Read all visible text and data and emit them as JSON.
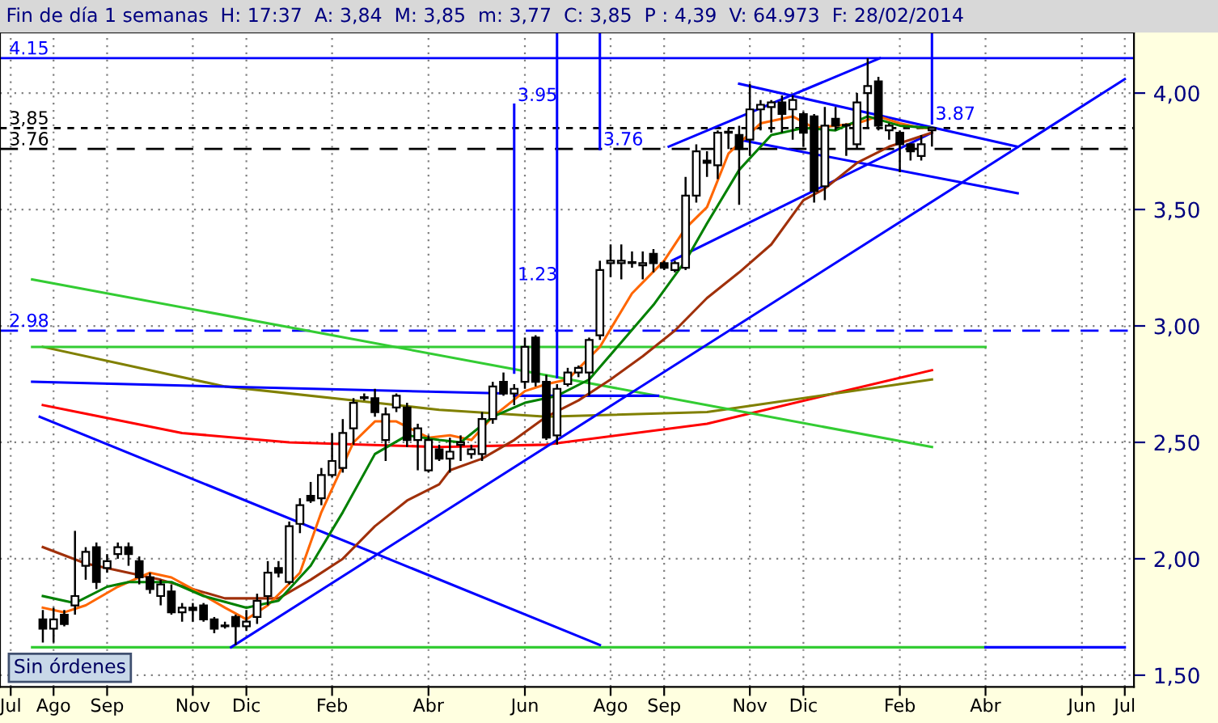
{
  "chart_data": {
    "type": "candlestick",
    "title": "Fin de día 1 semanas  H: 17:37  A: 3,84  M: 3,85  m: 3,77  C: 3,85  P : 4,39  V: 64.973  F: 28/02/2014",
    "x": [
      "2012-07-27",
      "2012-08-03",
      "2012-08-10",
      "2012-08-17",
      "2012-08-24",
      "2012-08-31",
      "2012-09-07",
      "2012-09-14",
      "2012-09-21",
      "2012-09-28",
      "2012-10-05",
      "2012-10-12",
      "2012-10-19",
      "2012-10-26",
      "2012-11-02",
      "2012-11-09",
      "2012-11-16",
      "2012-11-23",
      "2012-11-30",
      "2012-12-07",
      "2012-12-14",
      "2012-12-21",
      "2012-12-28",
      "2013-01-04",
      "2013-01-11",
      "2013-01-18",
      "2013-01-25",
      "2013-02-01",
      "2013-02-08",
      "2013-02-15",
      "2013-02-22",
      "2013-03-01",
      "2013-03-08",
      "2013-03-15",
      "2013-03-22",
      "2013-03-29",
      "2013-04-05",
      "2013-04-12",
      "2013-04-19",
      "2013-04-26",
      "2013-05-03",
      "2013-05-10",
      "2013-05-17",
      "2013-05-24",
      "2013-05-31",
      "2013-06-07",
      "2013-06-14",
      "2013-06-21",
      "2013-06-28",
      "2013-07-05",
      "2013-07-12",
      "2013-07-19",
      "2013-07-26",
      "2013-08-02",
      "2013-08-09",
      "2013-08-16",
      "2013-08-23",
      "2013-08-30",
      "2013-09-06",
      "2013-09-13",
      "2013-09-20",
      "2013-09-27",
      "2013-10-04",
      "2013-10-11",
      "2013-10-18",
      "2013-10-25",
      "2013-11-01",
      "2013-11-08",
      "2013-11-15",
      "2013-11-22",
      "2013-11-29",
      "2013-12-06",
      "2013-12-13",
      "2013-12-20",
      "2013-12-27",
      "2014-01-03",
      "2014-01-10",
      "2014-01-17",
      "2014-01-24",
      "2014-01-31",
      "2014-02-07",
      "2014-02-14",
      "2014-02-21",
      "2014-02-28"
    ],
    "ohlc": [
      [
        1.74,
        1.78,
        1.64,
        1.7
      ],
      [
        1.7,
        1.79,
        1.64,
        1.74
      ],
      [
        1.76,
        1.78,
        1.71,
        1.72
      ],
      [
        1.8,
        2.12,
        1.76,
        1.84
      ],
      [
        1.97,
        2.05,
        1.91,
        2.03
      ],
      [
        2.05,
        2.07,
        1.87,
        1.9
      ],
      [
        1.96,
        2.02,
        1.94,
        1.99
      ],
      [
        2.02,
        2.07,
        2.0,
        2.05
      ],
      [
        2.05,
        2.07,
        1.97,
        2.02
      ],
      [
        1.99,
        2.01,
        1.89,
        1.92
      ],
      [
        1.92,
        1.94,
        1.85,
        1.87
      ],
      [
        1.84,
        1.91,
        1.8,
        1.89
      ],
      [
        1.86,
        1.89,
        1.76,
        1.77
      ],
      [
        1.77,
        1.81,
        1.73,
        1.79
      ],
      [
        1.79,
        1.81,
        1.73,
        1.78
      ],
      [
        1.8,
        1.81,
        1.73,
        1.74
      ],
      [
        1.74,
        1.75,
        1.68,
        1.7
      ],
      [
        1.71,
        1.73,
        1.7,
        1.71
      ],
      [
        1.75,
        1.76,
        1.63,
        1.71
      ],
      [
        1.71,
        1.78,
        1.69,
        1.73
      ],
      [
        1.75,
        1.85,
        1.72,
        1.82
      ],
      [
        1.84,
        1.99,
        1.8,
        1.94
      ],
      [
        1.96,
        1.99,
        1.92,
        1.94
      ],
      [
        1.9,
        2.16,
        1.89,
        2.14
      ],
      [
        2.15,
        2.26,
        2.11,
        2.23
      ],
      [
        2.27,
        2.33,
        2.24,
        2.25
      ],
      [
        2.26,
        2.39,
        2.23,
        2.36
      ],
      [
        2.36,
        2.54,
        2.35,
        2.42
      ],
      [
        2.39,
        2.6,
        2.37,
        2.54
      ],
      [
        2.56,
        2.69,
        2.49,
        2.67
      ],
      [
        2.69,
        2.71,
        2.68,
        2.69
      ],
      [
        2.69,
        2.73,
        2.61,
        2.63
      ],
      [
        2.51,
        2.65,
        2.42,
        2.62
      ],
      [
        2.65,
        2.71,
        2.63,
        2.7
      ],
      [
        2.65,
        2.67,
        2.48,
        2.51
      ],
      [
        2.51,
        2.58,
        2.38,
        2.56
      ],
      [
        2.38,
        2.53,
        2.37,
        2.51
      ],
      [
        2.47,
        2.49,
        2.42,
        2.43
      ],
      [
        2.43,
        2.52,
        2.37,
        2.46
      ],
      [
        2.49,
        2.53,
        2.42,
        2.5
      ],
      [
        2.45,
        2.49,
        2.43,
        2.47
      ],
      [
        2.45,
        2.63,
        2.42,
        2.6
      ],
      [
        2.6,
        2.76,
        2.58,
        2.74
      ],
      [
        2.76,
        2.8,
        2.7,
        2.71
      ],
      [
        2.71,
        2.75,
        2.66,
        2.73
      ],
      [
        2.76,
        2.95,
        2.73,
        2.91
      ],
      [
        2.95,
        2.96,
        2.74,
        2.76
      ],
      [
        2.76,
        2.79,
        2.51,
        2.52
      ],
      [
        2.53,
        2.75,
        2.49,
        2.73
      ],
      [
        2.75,
        2.82,
        2.74,
        2.8
      ],
      [
        2.8,
        2.83,
        2.78,
        2.82
      ],
      [
        2.8,
        2.95,
        2.7,
        2.94
      ],
      [
        2.96,
        3.28,
        2.94,
        3.24
      ],
      [
        3.27,
        3.35,
        3.21,
        3.28
      ],
      [
        3.27,
        3.35,
        3.2,
        3.28
      ],
      [
        3.27,
        3.32,
        3.25,
        3.27
      ],
      [
        3.26,
        3.32,
        3.2,
        3.27
      ],
      [
        3.31,
        3.33,
        3.23,
        3.27
      ],
      [
        3.27,
        3.28,
        3.24,
        3.25
      ],
      [
        3.24,
        3.28,
        3.23,
        3.27
      ],
      [
        3.25,
        3.64,
        3.24,
        3.56
      ],
      [
        3.56,
        3.78,
        3.53,
        3.75
      ],
      [
        3.71,
        3.75,
        3.64,
        3.7
      ],
      [
        3.69,
        3.84,
        3.63,
        3.83
      ],
      [
        3.83,
        3.85,
        3.76,
        3.83
      ],
      [
        3.82,
        3.86,
        3.52,
        3.76
      ],
      [
        3.8,
        4.04,
        3.73,
        3.93
      ],
      [
        3.93,
        3.97,
        3.84,
        3.95
      ],
      [
        3.94,
        3.97,
        3.83,
        3.96
      ],
      [
        3.96,
        3.99,
        3.83,
        3.91
      ],
      [
        3.93,
        3.99,
        3.8,
        3.97
      ],
      [
        3.91,
        3.92,
        3.77,
        3.83
      ],
      [
        3.9,
        3.91,
        3.53,
        3.58
      ],
      [
        3.6,
        3.94,
        3.54,
        3.86
      ],
      [
        3.89,
        3.94,
        3.84,
        3.86
      ],
      [
        3.86,
        3.87,
        3.73,
        3.86
      ],
      [
        3.78,
        4.0,
        3.76,
        3.96
      ],
      [
        4.0,
        4.15,
        3.85,
        4.03
      ],
      [
        4.05,
        4.07,
        3.84,
        3.86
      ],
      [
        3.84,
        3.87,
        3.8,
        3.86
      ],
      [
        3.83,
        3.84,
        3.66,
        3.78
      ],
      [
        3.78,
        3.78,
        3.71,
        3.75
      ],
      [
        3.73,
        3.82,
        3.71,
        3.78
      ],
      [
        3.84,
        3.85,
        3.77,
        3.85
      ]
    ],
    "series": [
      {
        "type": "line",
        "color": "#ff0000",
        "x": [
          "2012-07-27",
          "2012-10-26",
          "2013-01-04",
          "2013-04-12",
          "2013-06-21",
          "2013-10-04",
          "2014-02-28"
        ],
        "values": [
          2.66,
          2.54,
          2.5,
          2.48,
          2.49,
          2.58,
          2.81
        ]
      },
      {
        "type": "line",
        "color": "#808000",
        "x": [
          "2012-07-27",
          "2012-11-23",
          "2013-04-12",
          "2013-06-21",
          "2013-10-04",
          "2014-02-28"
        ],
        "values": [
          2.91,
          2.74,
          2.64,
          2.61,
          2.63,
          2.77
        ]
      },
      {
        "type": "line",
        "color": "#33cc33",
        "x": [
          "2012-07-20",
          "2014-02-28"
        ],
        "values": [
          3.2,
          2.48
        ]
      },
      {
        "type": "line",
        "color": "#33cc33",
        "x": [
          "2012-07-20",
          "2014-04-04"
        ],
        "values": [
          2.91,
          2.91
        ]
      },
      {
        "type": "line",
        "color": "#33cc33",
        "x": [
          "2012-07-20",
          "2014-04-04"
        ],
        "values": [
          1.62,
          1.62
        ]
      },
      {
        "type": "line",
        "color": "#0000ff",
        "x": [
          "2014-04-04",
          "2014-07-04"
        ],
        "values": [
          1.62,
          1.62
        ]
      },
      {
        "type": "line",
        "color": "#0000ff",
        "x": [
          "2012-07-20",
          "2013-05-24"
        ],
        "values": [
          2.76,
          2.71
        ]
      },
      {
        "type": "line",
        "color": "#0000ff",
        "x": [
          "2013-05-31",
          "2013-09-02"
        ],
        "values": [
          2.7,
          2.7
        ]
      },
      {
        "type": "line",
        "color": "#0000ff",
        "x": [
          "2012-07-25",
          "2013-07-26"
        ],
        "values": [
          2.61,
          1.63
        ]
      },
      {
        "type": "line",
        "color": "#0000ff",
        "x": [
          "2012-11-27",
          "2014-07-04"
        ],
        "values": [
          1.62,
          4.06
        ]
      },
      {
        "type": "line",
        "color": "#0000ff",
        "x": [
          "2013-09-09",
          "2014-01-25"
        ],
        "values": [
          3.77,
          4.15
        ]
      },
      {
        "type": "line",
        "color": "#0000ff",
        "x": [
          "2013-09-11",
          "2014-02-28"
        ],
        "values": [
          3.28,
          3.83
        ]
      },
      {
        "type": "line",
        "color": "#0000ff",
        "x": [
          "2013-10-25",
          "2014-04-25"
        ],
        "values": [
          4.04,
          3.77
        ]
      },
      {
        "type": "line",
        "color": "#0000ff",
        "x": [
          "2013-10-25",
          "2014-04-25"
        ],
        "values": [
          3.8,
          3.57
        ]
      },
      {
        "type": "line",
        "color": "#0000ff",
        "x": [
          "2013-05-31",
          "2013-05-31"
        ],
        "values": [
          3.95,
          2.8
        ]
      },
      {
        "type": "line",
        "color": "#0000ff",
        "x": [
          "2013-06-28",
          "2013-06-28"
        ],
        "values": [
          4.26,
          2.78
        ]
      },
      {
        "type": "line",
        "color": "#0000ff",
        "x": [
          "2013-07-26",
          "2013-07-26"
        ],
        "values": [
          4.26,
          3.76
        ]
      },
      {
        "type": "line",
        "color": "#0000ff",
        "x": [
          "2014-02-28",
          "2014-02-28"
        ],
        "values": [
          4.26,
          3.87
        ]
      },
      {
        "type": "line",
        "color": "#a0300a",
        "x": [
          "2012-07-27",
          "2012-08-24",
          "2012-09-21",
          "2012-10-12",
          "2012-11-02",
          "2012-11-23",
          "2012-12-07",
          "2012-12-28",
          "2013-01-18",
          "2013-02-08",
          "2013-03-01",
          "2013-03-22",
          "2013-04-12",
          "2013-04-19",
          "2013-05-10",
          "2013-05-31",
          "2013-06-21",
          "2013-07-12",
          "2013-08-02",
          "2013-08-23",
          "2013-09-13",
          "2013-10-04",
          "2013-10-25",
          "2013-11-15",
          "2013-12-06",
          "2013-12-20",
          "2014-01-10",
          "2014-01-31",
          "2014-02-14",
          "2014-02-28"
        ],
        "values": [
          2.05,
          1.98,
          1.94,
          1.91,
          1.87,
          1.83,
          1.83,
          1.83,
          1.91,
          2.0,
          2.14,
          2.25,
          2.32,
          2.38,
          2.43,
          2.51,
          2.61,
          2.68,
          2.77,
          2.87,
          2.98,
          3.12,
          3.23,
          3.35,
          3.54,
          3.59,
          3.7,
          3.77,
          3.8,
          3.83
        ]
      },
      {
        "type": "line",
        "color": "#ff6600",
        "x": [
          "2012-07-27",
          "2012-08-10",
          "2012-08-24",
          "2012-09-14",
          "2012-10-05",
          "2012-10-19",
          "2012-11-02",
          "2012-11-23",
          "2012-12-07",
          "2012-12-21",
          "2013-01-11",
          "2013-01-25",
          "2013-02-15",
          "2013-03-01",
          "2013-03-15",
          "2013-04-05",
          "2013-04-19",
          "2013-05-03",
          "2013-05-17",
          "2013-06-07",
          "2013-06-21",
          "2013-07-05",
          "2013-07-26",
          "2013-08-16",
          "2013-09-06",
          "2013-09-20",
          "2013-10-04",
          "2013-10-18",
          "2013-11-08",
          "2013-11-29",
          "2013-12-13",
          "2013-12-27",
          "2014-01-10",
          "2014-01-24",
          "2014-02-07",
          "2014-02-21",
          "2014-02-28"
        ],
        "values": [
          1.79,
          1.77,
          1.8,
          1.88,
          1.94,
          1.92,
          1.87,
          1.79,
          1.74,
          1.8,
          1.94,
          2.2,
          2.5,
          2.59,
          2.59,
          2.52,
          2.53,
          2.51,
          2.61,
          2.72,
          2.75,
          2.77,
          2.91,
          3.14,
          3.28,
          3.42,
          3.51,
          3.74,
          3.87,
          3.9,
          3.85,
          3.86,
          3.87,
          3.9,
          3.87,
          3.85,
          3.85
        ]
      },
      {
        "type": "line",
        "color": "#008000",
        "x": [
          "2012-07-27",
          "2012-08-17",
          "2012-09-07",
          "2012-09-21",
          "2012-10-19",
          "2012-11-09",
          "2012-12-07",
          "2012-12-28",
          "2013-01-18",
          "2013-02-08",
          "2013-03-01",
          "2013-03-22",
          "2013-04-12",
          "2013-04-26",
          "2013-05-17",
          "2013-06-07",
          "2013-06-28",
          "2013-07-19",
          "2013-08-09",
          "2013-08-30",
          "2013-09-20",
          "2013-10-04",
          "2013-10-25",
          "2013-11-15",
          "2013-12-06",
          "2013-12-27",
          "2014-01-17",
          "2014-02-07",
          "2014-02-28"
        ],
        "values": [
          1.84,
          1.81,
          1.88,
          1.9,
          1.9,
          1.84,
          1.79,
          1.82,
          1.97,
          2.2,
          2.45,
          2.53,
          2.51,
          2.5,
          2.61,
          2.67,
          2.7,
          2.77,
          2.93,
          3.09,
          3.28,
          3.44,
          3.67,
          3.82,
          3.85,
          3.84,
          3.9,
          3.86,
          3.85
        ]
      }
    ],
    "xlim": [
      "2012-06-29",
      "2014-07-10"
    ],
    "xticks": [
      {
        "value": "2012-07-06",
        "label": "Jul"
      },
      {
        "value": "2012-08-03",
        "label": "Ago"
      },
      {
        "value": "2012-09-07",
        "label": "Sep"
      },
      {
        "value": "2012-11-02",
        "label": "Nov"
      },
      {
        "value": "2012-12-07",
        "label": "Dic"
      },
      {
        "value": "2013-02-01",
        "label": "Feb"
      },
      {
        "value": "2013-04-05",
        "label": "Abr"
      },
      {
        "value": "2013-06-07",
        "label": "Jun"
      },
      {
        "value": "2013-08-02",
        "label": "Ago"
      },
      {
        "value": "2013-09-06",
        "label": "Sep"
      },
      {
        "value": "2013-11-01",
        "label": "Nov"
      },
      {
        "value": "2013-12-06",
        "label": "Dic"
      },
      {
        "value": "2014-02-07",
        "label": "Feb"
      },
      {
        "value": "2014-04-04",
        "label": "Abr"
      },
      {
        "value": "2014-06-06",
        "label": "Jun"
      },
      {
        "value": "2014-07-04",
        "label": "Jul"
      }
    ],
    "ylim": [
      1.45,
      4.26
    ],
    "yticks": [
      {
        "value": 1.5,
        "label": "1,50"
      },
      {
        "value": 2.0,
        "label": "2,00"
      },
      {
        "value": 2.5,
        "label": "2,50"
      },
      {
        "value": 3.0,
        "label": "3,00"
      },
      {
        "value": 3.5,
        "label": "3,50"
      },
      {
        "value": 4.0,
        "label": "4,00"
      }
    ],
    "grid": true,
    "ref_lines": [
      {
        "axis": "y",
        "value": 4.15,
        "label": "4.15",
        "color": "#0000ff",
        "line_style": "solid"
      },
      {
        "axis": "y",
        "value": 3.76,
        "label": "3.76",
        "color": "#000000",
        "line_style": "dashed"
      },
      {
        "axis": "y",
        "value": 3.85,
        "label": "3,85",
        "color": "#000000",
        "line_style": "dotted"
      },
      {
        "axis": "y",
        "value": 2.98,
        "label": "2.98",
        "color": "#0000ff",
        "line_style": "dashed"
      }
    ],
    "annotations": [
      "Sin órdenes",
      {
        "text": "3.95",
        "x": "2013-05-31",
        "y": 3.95
      },
      {
        "text": "1.23",
        "x": "2013-05-31",
        "y": 3.18
      },
      {
        "text": "3.76",
        "x": "2013-07-26",
        "y": 3.76
      },
      {
        "text": "3.87",
        "x": "2014-02-28",
        "y": 3.87
      }
    ]
  }
}
